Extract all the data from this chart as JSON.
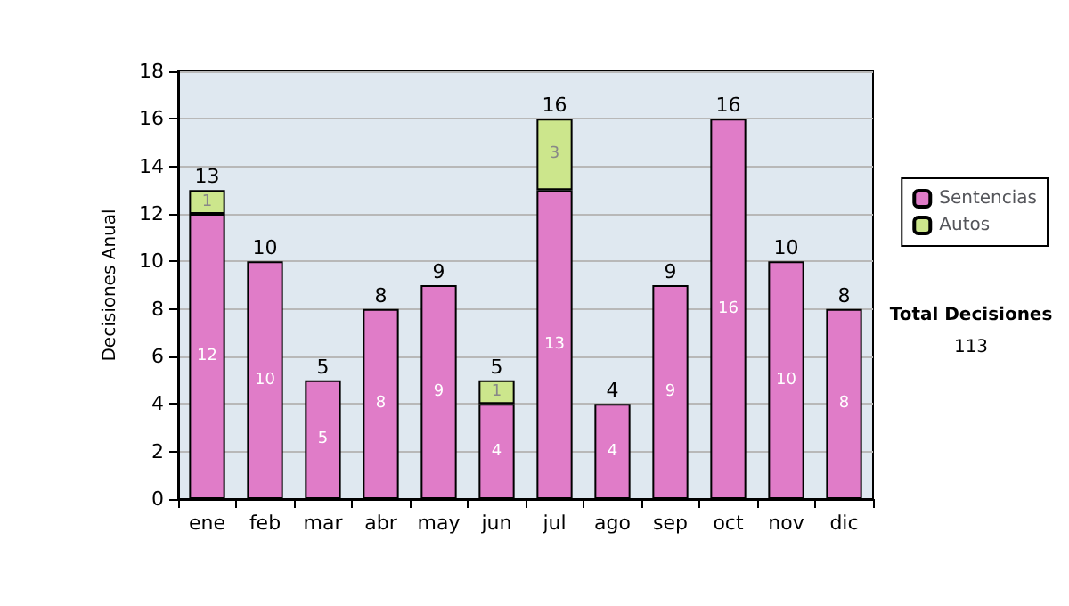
{
  "chart_data": {
    "type": "bar",
    "stacked": true,
    "ylabel": "Decisiones Anual",
    "categories": [
      "ene",
      "feb",
      "mar",
      "abr",
      "may",
      "jun",
      "jul",
      "ago",
      "sep",
      "oct",
      "nov",
      "dic"
    ],
    "series": [
      {
        "name": "Sentencias",
        "color": "#e07cc8",
        "values": [
          12,
          10,
          5,
          8,
          9,
          4,
          13,
          4,
          9,
          16,
          10,
          8
        ]
      },
      {
        "name": "Autos",
        "color": "#cce68c",
        "values": [
          1,
          null,
          null,
          null,
          null,
          1,
          3,
          null,
          null,
          null,
          null,
          null
        ]
      }
    ],
    "totals": [
      "13",
      "10",
      "5",
      "8",
      "9",
      "5",
      "16",
      "4",
      "9",
      "16",
      "10",
      "8"
    ],
    "data_labels": true,
    "ylim": [
      0,
      18
    ],
    "yticks": [
      0,
      2,
      4,
      6,
      8,
      10,
      12,
      14,
      16,
      18
    ],
    "grid": "y",
    "legend": "right",
    "annotations": [
      "Total Decisiones",
      "113"
    ]
  }
}
